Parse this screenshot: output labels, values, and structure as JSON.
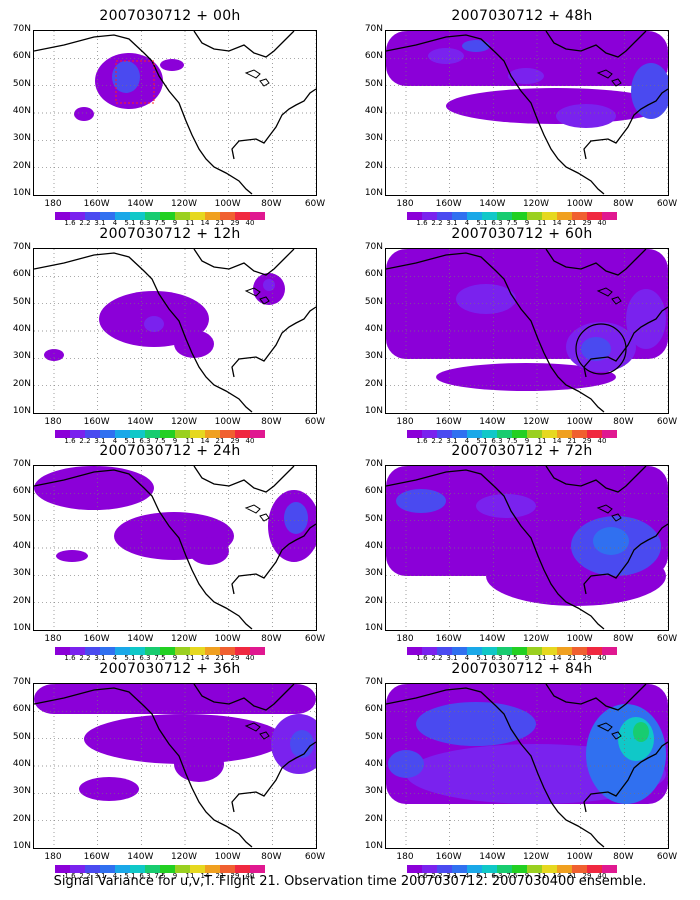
{
  "panels": [
    {
      "title": "2007030712 + 00h"
    },
    {
      "title": "2007030712 + 48h"
    },
    {
      "title": "2007030712 + 12h"
    },
    {
      "title": "2007030712 + 60h"
    },
    {
      "title": "2007030712 + 24h"
    },
    {
      "title": "2007030712 + 72h"
    },
    {
      "title": "2007030712 + 36h"
    },
    {
      "title": "2007030712 + 84h"
    }
  ],
  "latitude_labels": [
    "70N",
    "60N",
    "50N",
    "40N",
    "30N",
    "20N",
    "10N"
  ],
  "longitude_labels": [
    "180",
    "160W",
    "140W",
    "120W",
    "100W",
    "80W",
    "60W"
  ],
  "colorbar": {
    "labels": [
      "1.6",
      "2.2",
      "3.1",
      "4",
      "5.1",
      "6.3",
      "7.5",
      "9",
      "11",
      "14",
      "21",
      "29",
      "40"
    ],
    "colors": [
      "#8b00d8",
      "#7a22ee",
      "#4a4af0",
      "#3070f0",
      "#1aa8e8",
      "#10c8c8",
      "#18cc70",
      "#22d022",
      "#9ad020",
      "#e6d820",
      "#f0a020",
      "#f06030",
      "#f02840",
      "#e01890"
    ]
  },
  "caption": "Signal Variance for u,v,T. Flight 21. Observation time 2007030712. 2007030400 ensemble."
}
